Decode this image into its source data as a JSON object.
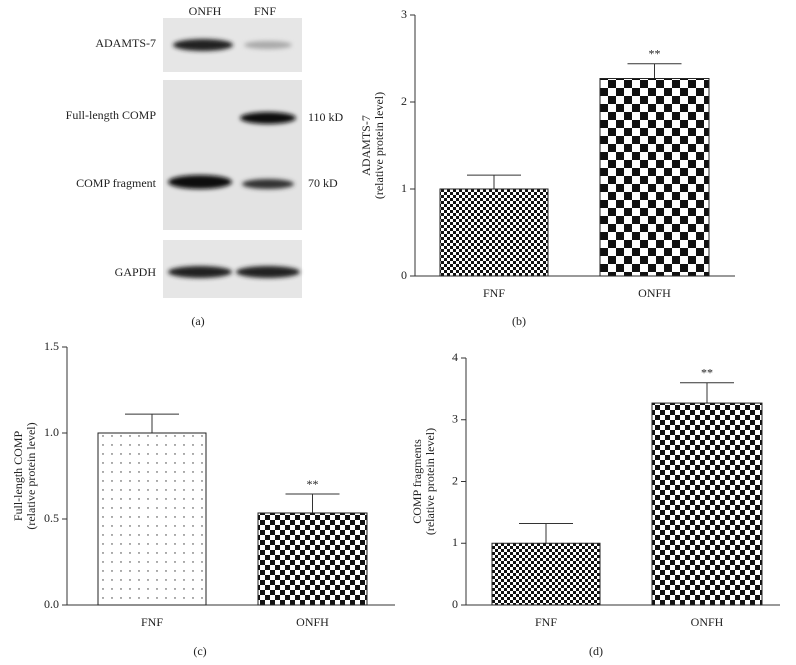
{
  "blot": {
    "lanes": [
      "ONFH",
      "FNF"
    ],
    "rows": [
      "ADAMTS-7",
      "Full-length COMP",
      "COMP fragment",
      "GAPDH"
    ],
    "sizes": [
      "110 kD",
      "70 kD"
    ],
    "caption": "(a)"
  },
  "chart_data": [
    {
      "type": "bar",
      "caption": "(b)",
      "ylabel": [
        "ADAMTS-7",
        "(relative protein level)"
      ],
      "categories": [
        "FNF",
        "ONFH"
      ],
      "values": [
        1.0,
        2.27
      ],
      "errors": [
        0.16,
        0.17
      ],
      "significance": [
        null,
        "**"
      ],
      "patterns": [
        "checker-small",
        "checker-large"
      ],
      "ylim": [
        0,
        3
      ],
      "yticks": [
        0,
        1,
        2,
        3
      ]
    },
    {
      "type": "bar",
      "caption": "(c)",
      "ylabel": [
        "Full-length COMP",
        "(relative protein level)"
      ],
      "categories": [
        "FNF",
        "ONFH"
      ],
      "values": [
        1.0,
        0.535
      ],
      "errors": [
        0.11,
        0.11
      ],
      "significance": [
        null,
        "**"
      ],
      "patterns": [
        "dots",
        "checker-medium"
      ],
      "ylim": [
        0,
        1.5
      ],
      "yticks": [
        {
          "value": 0,
          "label": "0.0"
        },
        0.5,
        {
          "value": 1,
          "label": "1.0"
        },
        1.5
      ]
    },
    {
      "type": "bar",
      "caption": "(d)",
      "ylabel": [
        "COMP fragments",
        "(relative protein level)"
      ],
      "categories": [
        "FNF",
        "ONFH"
      ],
      "values": [
        1.0,
        3.27
      ],
      "errors": [
        0.32,
        0.33
      ],
      "significance": [
        null,
        "**"
      ],
      "patterns": [
        "checker-small",
        "checker-medium"
      ],
      "ylim": [
        0,
        4
      ],
      "yticks": [
        0,
        1,
        2,
        3,
        4
      ]
    }
  ]
}
